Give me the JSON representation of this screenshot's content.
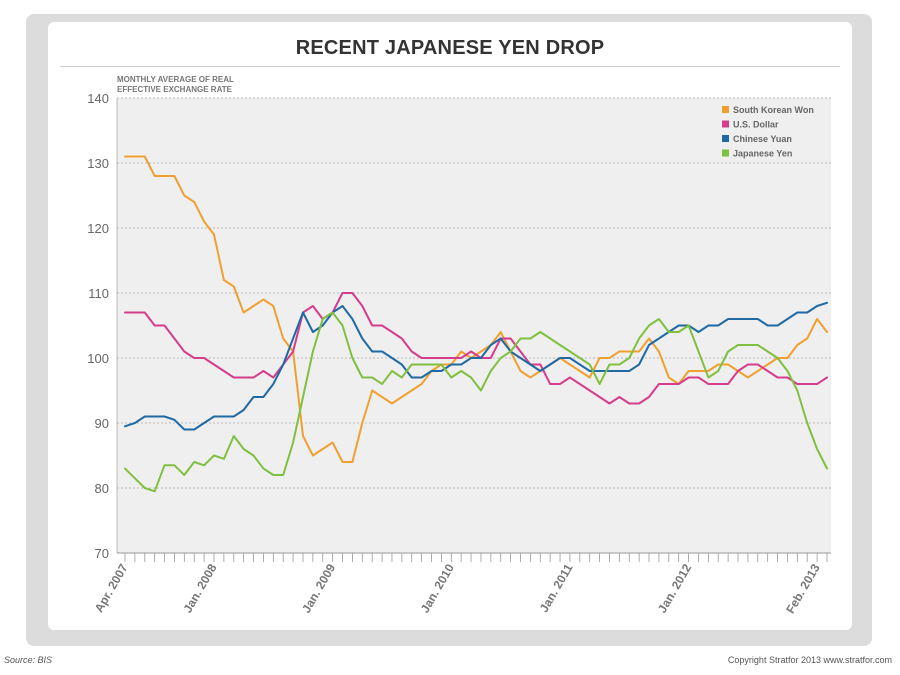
{
  "title": "RECENT JAPANESE YEN DROP",
  "footer": {
    "source": "Source: BIS",
    "copyright": "Copyright Stratfor 2013  www.stratfor.com"
  },
  "chart_data": {
    "type": "line",
    "title": "RECENT JAPANESE YEN DROP",
    "ylabel": "MONTHLY AVERAGE OF REAL EFFECTIVE EXCHANGE RATE",
    "ylabel_lines": [
      "MONTHLY AVERAGE OF REAL",
      "EFFECTIVE EXCHANGE RATE"
    ],
    "xlabel": "",
    "ylim": [
      70,
      140
    ],
    "yticks": [
      70,
      80,
      90,
      100,
      110,
      120,
      130,
      140
    ],
    "grid": true,
    "legend_position": "top-right",
    "x_start": "2007-04",
    "x_end": "2013-02",
    "xtick_labels": [
      {
        "month_index": 0,
        "label": "Apr. 2007"
      },
      {
        "month_index": 9,
        "label": "Jan. 2008"
      },
      {
        "month_index": 21,
        "label": "Jan. 2009"
      },
      {
        "month_index": 33,
        "label": "Jan. 2010"
      },
      {
        "month_index": 45,
        "label": "Jan. 2011"
      },
      {
        "month_index": 57,
        "label": "Jan. 2012"
      },
      {
        "month_index": 70,
        "label": "Feb. 2013"
      }
    ],
    "series": [
      {
        "name": "South Korean Won",
        "color": "#f0a030",
        "values": [
          131,
          131,
          131,
          128,
          128,
          128,
          125,
          124,
          121,
          119,
          112,
          111,
          107,
          108,
          109,
          108,
          103,
          101,
          88,
          85,
          86,
          87,
          84,
          84,
          90,
          95,
          94,
          93,
          94,
          95,
          96,
          98,
          99,
          99,
          101,
          100,
          101,
          102,
          104,
          101,
          98,
          97,
          98,
          99,
          100,
          99,
          98,
          97,
          100,
          100,
          101,
          101,
          101,
          103,
          101,
          97,
          96,
          98,
          98,
          98,
          99,
          99,
          98,
          97,
          98,
          99,
          100,
          100,
          102,
          103,
          106,
          104
        ]
      },
      {
        "name": "U.S. Dollar",
        "color": "#d63c8c",
        "values": [
          107,
          107,
          107,
          105,
          105,
          103,
          101,
          100,
          100,
          99,
          98,
          97,
          97,
          97,
          98,
          97,
          99,
          101,
          107,
          108,
          106,
          107,
          110,
          110,
          108,
          105,
          105,
          104,
          103,
          101,
          100,
          100,
          100,
          100,
          100,
          101,
          100,
          100,
          103,
          103,
          101,
          99,
          99,
          96,
          96,
          97,
          96,
          95,
          94,
          93,
          94,
          93,
          93,
          94,
          96,
          96,
          96,
          97,
          97,
          96,
          96,
          96,
          98,
          99,
          99,
          98,
          97,
          97,
          96,
          96,
          96,
          97
        ]
      },
      {
        "name": "Chinese Yuan",
        "color": "#1f6aa5",
        "values": [
          89.5,
          90,
          91,
          91,
          91,
          90.5,
          89,
          89,
          90,
          91,
          91,
          91,
          92,
          94,
          94,
          96,
          99,
          103,
          107,
          104,
          105,
          107,
          108,
          106,
          103,
          101,
          101,
          100,
          99,
          97,
          97,
          98,
          98,
          99,
          99,
          100,
          100,
          102,
          103,
          101,
          100,
          99,
          98,
          99,
          100,
          100,
          99,
          98,
          98,
          98,
          98,
          98,
          99,
          102,
          103,
          104,
          105,
          105,
          104,
          105,
          105,
          106,
          106,
          106,
          106,
          105,
          105,
          106,
          107,
          107,
          108,
          108.5
        ]
      },
      {
        "name": "Japanese Yen",
        "color": "#80c040",
        "values": [
          83,
          81.5,
          80,
          79.5,
          83.5,
          83.5,
          82,
          84,
          83.5,
          85,
          84.5,
          88,
          86,
          85,
          83,
          82,
          82,
          87,
          94,
          101,
          106,
          107,
          105,
          100,
          97,
          97,
          96,
          98,
          97,
          99,
          99,
          99,
          99,
          97,
          98,
          97,
          95,
          98,
          100,
          101,
          103,
          103,
          104,
          103,
          102,
          101,
          100,
          99,
          96,
          99,
          99,
          100,
          103,
          105,
          106,
          104,
          104,
          105,
          101,
          97,
          98,
          101,
          102,
          102,
          102,
          101,
          100,
          98,
          95,
          90,
          86,
          83
        ]
      }
    ]
  }
}
